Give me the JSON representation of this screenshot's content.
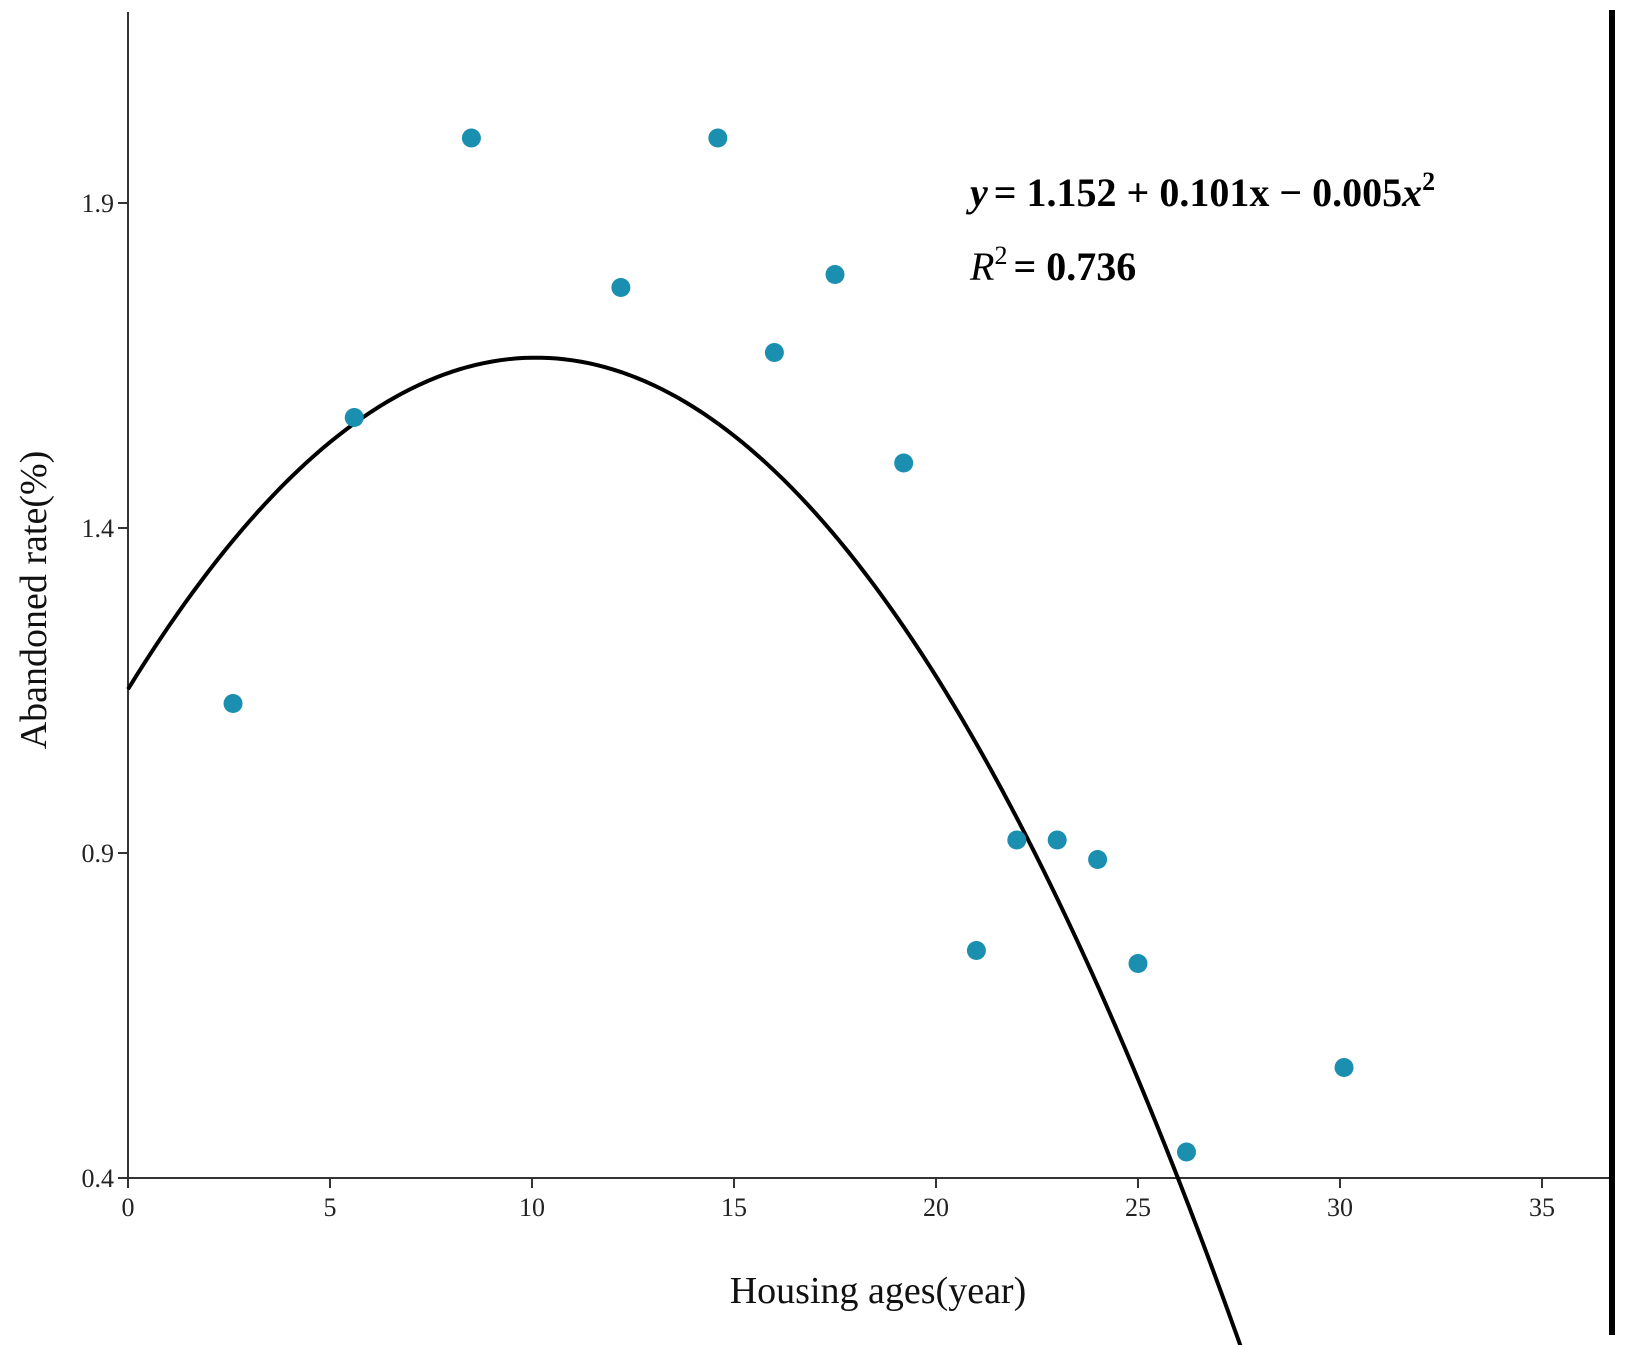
{
  "chart_data": {
    "type": "scatter",
    "xlabel": "Housing ages(year)",
    "ylabel": "Abandoned rate(%)",
    "xlim": [
      0,
      37
    ],
    "ylim": [
      0.4,
      2.0
    ],
    "x_ticks": [
      0,
      5,
      10,
      15,
      20,
      25,
      30,
      35
    ],
    "x_tick_labels": [
      "0",
      "5",
      "10",
      "15",
      "20",
      "25",
      "30",
      "35"
    ],
    "y_ticks": [
      0.4,
      0.9,
      1.4,
      1.9
    ],
    "y_tick_labels": [
      "0.4",
      "0.9",
      "1.4",
      "1.9"
    ],
    "grid": false,
    "points": [
      {
        "x": 2.6,
        "y": 1.13
      },
      {
        "x": 5.6,
        "y": 1.57
      },
      {
        "x": 8.5,
        "y": 2.0
      },
      {
        "x": 12.2,
        "y": 1.77
      },
      {
        "x": 14.6,
        "y": 2.0
      },
      {
        "x": 16.0,
        "y": 1.67
      },
      {
        "x": 17.5,
        "y": 1.79
      },
      {
        "x": 19.2,
        "y": 1.5
      },
      {
        "x": 21.0,
        "y": 0.75
      },
      {
        "x": 22.0,
        "y": 0.92
      },
      {
        "x": 23.0,
        "y": 0.92
      },
      {
        "x": 24.0,
        "y": 0.89
      },
      {
        "x": 25.0,
        "y": 0.73
      },
      {
        "x": 26.2,
        "y": 0.44
      },
      {
        "x": 30.1,
        "y": 0.57
      }
    ],
    "fit": {
      "type": "quadratic",
      "coefficients": [
        1.152,
        0.101,
        -0.005
      ],
      "x_range": [
        0,
        28.05
      ]
    },
    "equation": {
      "y_var": "y",
      "rhs": "= 1.152 + 0.101x − 0.005",
      "x_var": "x",
      "exp": "2"
    },
    "r_squared": {
      "r_var": "R",
      "exp": "2",
      "rhs": "= 0.736"
    },
    "colors": {
      "point": "#1a8fb0",
      "fit_line": "#000000",
      "axis": "#333333"
    }
  }
}
